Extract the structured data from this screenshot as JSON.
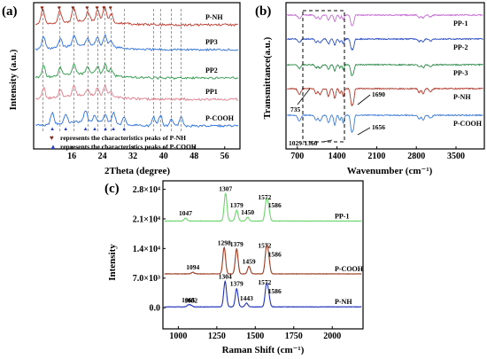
{
  "chart_data": [
    {
      "type": "line",
      "panel_label": "(a)",
      "xlabel": "2Theta (degree)",
      "ylabel": "Intensity (a.u.)",
      "xlim": [
        6,
        60
      ],
      "xticks": [
        "16",
        "24",
        "32",
        "40",
        "48",
        "56"
      ],
      "series": [
        {
          "name": "P-NH",
          "color": "#c0392b",
          "peaks": [
            8.4,
            12.9,
            16.5,
            20.2,
            22.8,
            24.6,
            26.3
          ]
        },
        {
          "name": "PP3",
          "color": "#2e6fd8",
          "peaks": [
            8.6,
            13.0,
            16.6,
            20.1,
            22.7,
            24.7,
            26.2
          ]
        },
        {
          "name": "PP2",
          "color": "#2e9a4a",
          "peaks": [
            8.6,
            13.0,
            16.6,
            20.1,
            22.7,
            24.7,
            26.2
          ]
        },
        {
          "name": "PP1",
          "color": "#e07b8a",
          "peaks": [
            8.6,
            13.0,
            16.6,
            20.1,
            22.7,
            24.7,
            26.2
          ]
        },
        {
          "name": "P-COOH",
          "color": "#2a6fe0",
          "peaks": [
            10.9,
            14.4,
            19.6,
            22.0,
            24.8,
            26.9,
            29.7,
            37.4,
            39.2,
            42.0,
            44.6
          ]
        }
      ],
      "annotations": [
        "represents the characteristics peaks of P-NH",
        "represents the characteristics peaks of P-COOH"
      ]
    },
    {
      "type": "line",
      "panel_label": "(b)",
      "xlabel": "Wavenumber (cm⁻¹)",
      "ylabel": "Transmittance(a.u.)",
      "xlim": [
        500,
        4000
      ],
      "xticks": [
        "700",
        "1400",
        "2100",
        "2800",
        "3500"
      ],
      "series": [
        {
          "name": "PP-1",
          "color": "#c56fd1"
        },
        {
          "name": "PP-2",
          "color": "#2d4fc4"
        },
        {
          "name": "PP-3",
          "color": "#2e8b4a"
        },
        {
          "name": "P-NH",
          "color": "#b03a2e"
        },
        {
          "name": "P-COOH",
          "color": "#3d7bd9"
        }
      ],
      "annotations": [
        "735",
        "1690",
        "1656",
        "1029-1360"
      ]
    },
    {
      "type": "line",
      "panel_label": "(c)",
      "xlabel": "Raman Shift (cm⁻¹)",
      "ylabel": "Intensity",
      "xlim": [
        900,
        2200
      ],
      "ylim": [
        -5000,
        30000
      ],
      "xticks": [
        "1000",
        "1250",
        "1500",
        "1750",
        "2000"
      ],
      "yticks": [
        "0.0",
        "7.0×10³",
        "1.4×10⁴",
        "2.1×10⁴",
        "2.8×10⁴"
      ],
      "series": [
        {
          "name": "PP-1",
          "color": "#6ed46e",
          "offset": 20500,
          "peaks": [
            {
              "x": 1047,
              "h": 700,
              "label": "1047"
            },
            {
              "x": 1307,
              "h": 6500,
              "label": "1307"
            },
            {
              "x": 1379,
              "h": 2600,
              "label": "1379"
            },
            {
              "x": 1450,
              "h": 900,
              "label": "1450"
            },
            {
              "x": 1572,
              "h": 4500,
              "label": "1572"
            },
            {
              "x": 1586,
              "h": 2600,
              "label": "1586"
            }
          ]
        },
        {
          "name": "P-COOH",
          "color": "#9a3a1f",
          "offset": 8000,
          "peaks": [
            {
              "x": 1094,
              "h": 400,
              "label": "1094"
            },
            {
              "x": 1298,
              "h": 6200,
              "label": "1298"
            },
            {
              "x": 1379,
              "h": 5900,
              "label": "1379"
            },
            {
              "x": 1459,
              "h": 1800,
              "label": "1459"
            },
            {
              "x": 1572,
              "h": 5500,
              "label": "1572"
            },
            {
              "x": 1586,
              "h": 3500,
              "label": "1586"
            }
          ]
        },
        {
          "name": "P-NH",
          "color": "#2233b8",
          "offset": 200,
          "peaks": [
            {
              "x": 1065,
              "h": 450,
              "label": "1065"
            },
            {
              "x": 1082,
              "h": 350,
              "label": "1082"
            },
            {
              "x": 1304,
              "h": 6000,
              "label": "1304"
            },
            {
              "x": 1379,
              "h": 4300,
              "label": "1379"
            },
            {
              "x": 1443,
              "h": 900,
              "label": "1443"
            },
            {
              "x": 1572,
              "h": 4700,
              "label": "1572"
            },
            {
              "x": 1586,
              "h": 2600,
              "label": "1586"
            }
          ]
        }
      ]
    }
  ]
}
